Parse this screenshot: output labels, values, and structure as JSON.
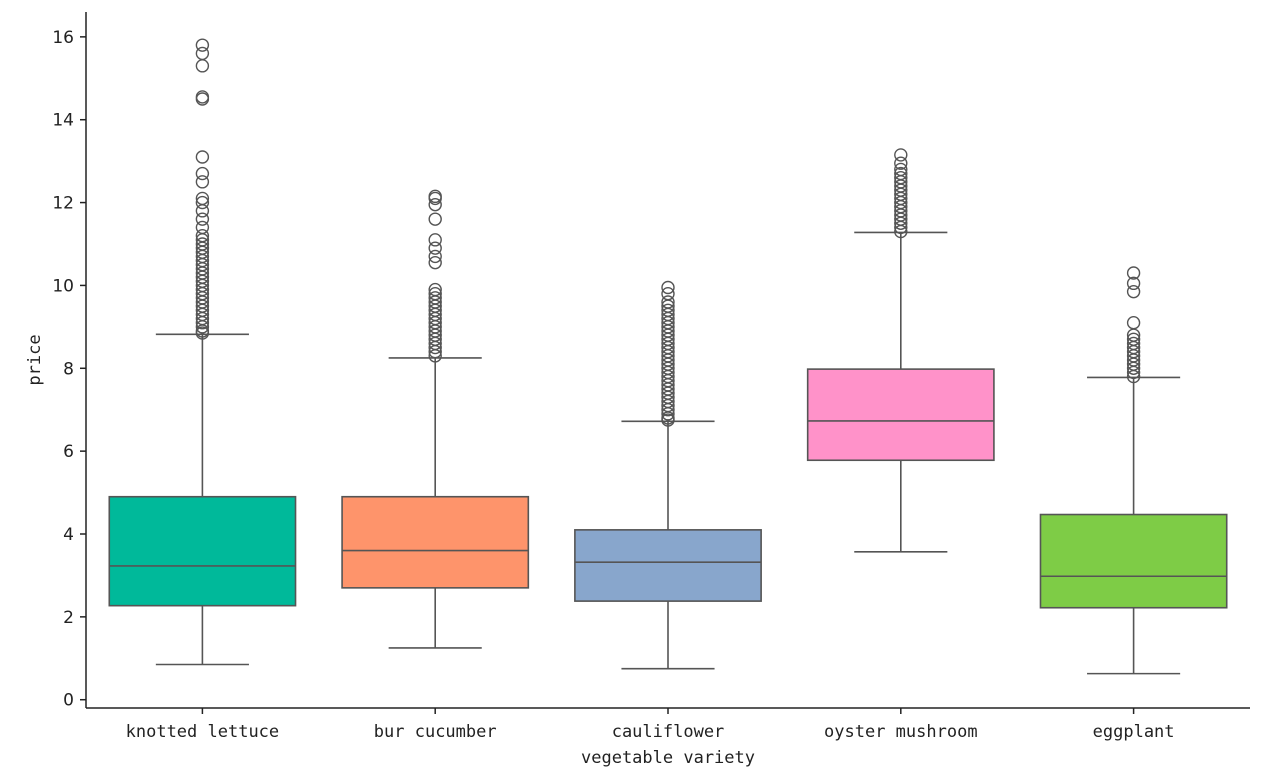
{
  "chart_data": {
    "type": "box",
    "title": "",
    "xlabel": "vegetable variety",
    "ylabel": "price",
    "ylim": [
      -0.2,
      16.6
    ],
    "yticks": [
      0,
      2,
      4,
      6,
      8,
      10,
      12,
      14,
      16
    ],
    "grid": false,
    "categories": [
      "knotted lettuce",
      "bur cucumber",
      "cauliflower",
      "oyster mushroom",
      "eggplant"
    ],
    "series": [
      {
        "category": "knotted lettuce",
        "color": "#00B99A",
        "whisker_low": 0.85,
        "q1": 2.27,
        "median": 3.23,
        "q3": 4.9,
        "whisker_high": 8.82,
        "outliers": [
          8.85,
          8.9,
          9.0,
          9.1,
          9.2,
          9.3,
          9.4,
          9.5,
          9.6,
          9.7,
          9.8,
          9.9,
          10.0,
          10.1,
          10.2,
          10.3,
          10.4,
          10.5,
          10.6,
          10.7,
          10.8,
          10.9,
          11.0,
          11.1,
          11.2,
          11.4,
          11.6,
          11.8,
          12.0,
          12.1,
          12.5,
          12.7,
          13.1,
          14.5,
          14.55,
          15.3,
          15.6,
          15.8
        ]
      },
      {
        "category": "bur cucumber",
        "color": "#FE946B",
        "whisker_low": 1.25,
        "q1": 2.7,
        "median": 3.6,
        "q3": 4.9,
        "whisker_high": 8.25,
        "outliers": [
          8.3,
          8.4,
          8.5,
          8.6,
          8.7,
          8.8,
          8.9,
          9.0,
          9.1,
          9.2,
          9.3,
          9.4,
          9.5,
          9.6,
          9.7,
          9.8,
          9.9,
          10.55,
          10.7,
          10.9,
          11.1,
          11.6,
          11.95,
          12.1,
          12.15
        ]
      },
      {
        "category": "cauliflower",
        "color": "#88A6CC",
        "whisker_low": 0.75,
        "q1": 2.38,
        "median": 3.32,
        "q3": 4.1,
        "whisker_high": 6.72,
        "outliers": [
          6.75,
          6.8,
          6.9,
          7.0,
          7.1,
          7.2,
          7.3,
          7.4,
          7.5,
          7.6,
          7.7,
          7.8,
          7.9,
          8.0,
          8.1,
          8.2,
          8.3,
          8.4,
          8.5,
          8.6,
          8.7,
          8.8,
          8.9,
          9.0,
          9.1,
          9.2,
          9.3,
          9.4,
          9.5,
          9.6,
          9.8,
          9.95
        ]
      },
      {
        "category": "oyster mushroom",
        "color": "#FF92C9",
        "whisker_low": 3.57,
        "q1": 5.78,
        "median": 6.73,
        "q3": 7.98,
        "whisker_high": 11.28,
        "outliers": [
          11.3,
          11.4,
          11.5,
          11.6,
          11.7,
          11.8,
          11.9,
          12.0,
          12.1,
          12.2,
          12.3,
          12.4,
          12.5,
          12.6,
          12.7,
          12.8,
          12.95,
          13.15
        ]
      },
      {
        "category": "eggplant",
        "color": "#7ECC46",
        "whisker_low": 0.63,
        "q1": 2.22,
        "median": 2.98,
        "q3": 4.47,
        "whisker_high": 7.78,
        "outliers": [
          7.8,
          7.9,
          8.0,
          8.1,
          8.2,
          8.3,
          8.4,
          8.5,
          8.6,
          8.7,
          8.8,
          9.1,
          9.85,
          10.05,
          10.3
        ]
      }
    ]
  }
}
